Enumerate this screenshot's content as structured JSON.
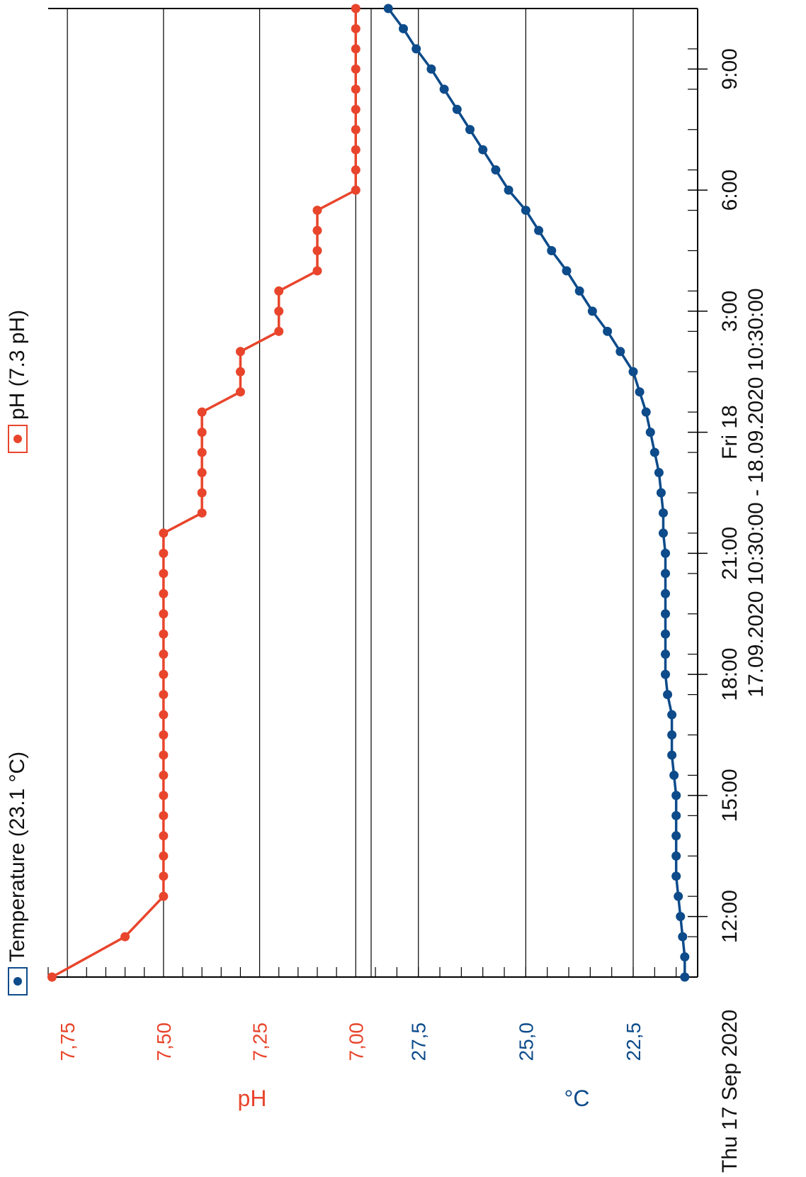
{
  "chart_data": {
    "type": "line",
    "legend": [
      {
        "label": "pH (7.3 pH)",
        "color": "#e8452c",
        "series": "ph"
      },
      {
        "label": "Temperature (23.1 °C)",
        "color": "#0d4b8a",
        "series": "temp"
      }
    ],
    "ph_axis": {
      "label": "pH",
      "ticks": [
        {
          "label": "7,75",
          "value": 7.75
        },
        {
          "label": "7,50",
          "value": 7.5
        },
        {
          "label": "7,25",
          "value": 7.25
        },
        {
          "label": "7,00",
          "value": 7.0
        }
      ],
      "range": [
        6.96,
        7.8
      ]
    },
    "temp_axis": {
      "label": "°C",
      "ticks": [
        {
          "label": "27,5",
          "value": 27.5
        },
        {
          "label": "25,0",
          "value": 25.0
        },
        {
          "label": "22,5",
          "value": 22.5
        }
      ],
      "range": [
        21.0,
        28.6
      ]
    },
    "x_axis": {
      "start": "2020-09-17 10:30",
      "end": "2020-09-18 10:30",
      "tick_labels": [
        {
          "text": "Thu 17 Sep 2020",
          "hours": 0.0
        },
        {
          "text": "12:00",
          "hours": 1.5
        },
        {
          "text": "15:00",
          "hours": 4.5
        },
        {
          "text": "18:00",
          "hours": 7.5
        },
        {
          "text": "21:00",
          "hours": 10.5
        },
        {
          "text": "Fri 18",
          "hours": 13.5
        },
        {
          "text": "3:00",
          "hours": 16.5
        },
        {
          "text": "6:00",
          "hours": 19.5
        },
        {
          "text": "9:00",
          "hours": 22.5
        }
      ],
      "range_label": "17.09.2020 10:30:00 - 18.09.2020 10:30:00"
    },
    "series": [
      {
        "name": "pH",
        "color": "#e8452c",
        "points": [
          [
            "2020-09-17 10:30",
            7.79
          ],
          [
            "2020-09-17 11:30",
            7.6
          ],
          [
            "2020-09-17 12:30",
            7.5
          ],
          [
            "2020-09-17 13:00",
            7.5
          ],
          [
            "2020-09-17 13:30",
            7.5
          ],
          [
            "2020-09-17 14:00",
            7.5
          ],
          [
            "2020-09-17 14:30",
            7.5
          ],
          [
            "2020-09-17 15:00",
            7.5
          ],
          [
            "2020-09-17 15:30",
            7.5
          ],
          [
            "2020-09-17 16:00",
            7.5
          ],
          [
            "2020-09-17 16:30",
            7.5
          ],
          [
            "2020-09-17 17:00",
            7.5
          ],
          [
            "2020-09-17 17:30",
            7.5
          ],
          [
            "2020-09-17 18:00",
            7.5
          ],
          [
            "2020-09-17 18:30",
            7.5
          ],
          [
            "2020-09-17 19:00",
            7.5
          ],
          [
            "2020-09-17 19:30",
            7.5
          ],
          [
            "2020-09-17 20:00",
            7.5
          ],
          [
            "2020-09-17 20:30",
            7.5
          ],
          [
            "2020-09-17 21:00",
            7.5
          ],
          [
            "2020-09-17 21:30",
            7.5
          ],
          [
            "2020-09-17 22:00",
            7.4
          ],
          [
            "2020-09-17 22:30",
            7.4
          ],
          [
            "2020-09-17 23:00",
            7.4
          ],
          [
            "2020-09-17 23:30",
            7.4
          ],
          [
            "2020-09-18 00:00",
            7.4
          ],
          [
            "2020-09-18 00:30",
            7.4
          ],
          [
            "2020-09-18 01:00",
            7.3
          ],
          [
            "2020-09-18 01:30",
            7.3
          ],
          [
            "2020-09-18 02:00",
            7.3
          ],
          [
            "2020-09-18 02:30",
            7.2
          ],
          [
            "2020-09-18 03:00",
            7.2
          ],
          [
            "2020-09-18 03:30",
            7.2
          ],
          [
            "2020-09-18 04:00",
            7.1
          ],
          [
            "2020-09-18 04:30",
            7.1
          ],
          [
            "2020-09-18 05:00",
            7.1
          ],
          [
            "2020-09-18 05:30",
            7.1
          ],
          [
            "2020-09-18 06:00",
            7.0
          ],
          [
            "2020-09-18 06:30",
            7.0
          ],
          [
            "2020-09-18 07:00",
            7.0
          ],
          [
            "2020-09-18 07:30",
            7.0
          ],
          [
            "2020-09-18 08:00",
            7.0
          ],
          [
            "2020-09-18 08:30",
            7.0
          ],
          [
            "2020-09-18 09:00",
            7.0
          ],
          [
            "2020-09-18 09:30",
            7.0
          ],
          [
            "2020-09-18 10:00",
            7.0
          ],
          [
            "2020-09-18 10:30",
            7.0
          ]
        ]
      },
      {
        "name": "Temperature",
        "color": "#0d4b8a",
        "points": [
          [
            "2020-09-17 10:30",
            21.3
          ],
          [
            "2020-09-17 11:00",
            21.3
          ],
          [
            "2020-09-17 11:30",
            21.35
          ],
          [
            "2020-09-17 12:00",
            21.4
          ],
          [
            "2020-09-17 12:30",
            21.45
          ],
          [
            "2020-09-17 13:00",
            21.5
          ],
          [
            "2020-09-17 13:30",
            21.5
          ],
          [
            "2020-09-17 14:00",
            21.5
          ],
          [
            "2020-09-17 14:30",
            21.5
          ],
          [
            "2020-09-17 15:00",
            21.5
          ],
          [
            "2020-09-17 15:30",
            21.55
          ],
          [
            "2020-09-17 16:00",
            21.6
          ],
          [
            "2020-09-17 16:30",
            21.6
          ],
          [
            "2020-09-17 17:00",
            21.6
          ],
          [
            "2020-09-17 17:30",
            21.7
          ],
          [
            "2020-09-17 18:00",
            21.75
          ],
          [
            "2020-09-17 18:30",
            21.75
          ],
          [
            "2020-09-17 19:00",
            21.75
          ],
          [
            "2020-09-17 19:30",
            21.75
          ],
          [
            "2020-09-17 20:00",
            21.75
          ],
          [
            "2020-09-17 20:30",
            21.75
          ],
          [
            "2020-09-17 21:00",
            21.75
          ],
          [
            "2020-09-17 21:30",
            21.8
          ],
          [
            "2020-09-17 22:00",
            21.8
          ],
          [
            "2020-09-17 22:30",
            21.85
          ],
          [
            "2020-09-17 23:00",
            21.9
          ],
          [
            "2020-09-17 23:30",
            22.0
          ],
          [
            "2020-09-18 00:00",
            22.1
          ],
          [
            "2020-09-18 00:30",
            22.2
          ],
          [
            "2020-09-18 01:00",
            22.35
          ],
          [
            "2020-09-18 01:30",
            22.5
          ],
          [
            "2020-09-18 02:00",
            22.8
          ],
          [
            "2020-09-18 02:30",
            23.1
          ],
          [
            "2020-09-18 03:00",
            23.45
          ],
          [
            "2020-09-18 03:30",
            23.75
          ],
          [
            "2020-09-18 04:00",
            24.05
          ],
          [
            "2020-09-18 04:30",
            24.4
          ],
          [
            "2020-09-18 05:00",
            24.7
          ],
          [
            "2020-09-18 05:30",
            25.0
          ],
          [
            "2020-09-18 06:00",
            25.4
          ],
          [
            "2020-09-18 06:30",
            25.7
          ],
          [
            "2020-09-18 07:00",
            26.0
          ],
          [
            "2020-09-18 07:30",
            26.3
          ],
          [
            "2020-09-18 08:00",
            26.6
          ],
          [
            "2020-09-18 08:30",
            26.9
          ],
          [
            "2020-09-18 09:00",
            27.2
          ],
          [
            "2020-09-18 09:30",
            27.55
          ],
          [
            "2020-09-18 10:00",
            27.85
          ],
          [
            "2020-09-18 10:30",
            28.2
          ]
        ]
      }
    ]
  }
}
